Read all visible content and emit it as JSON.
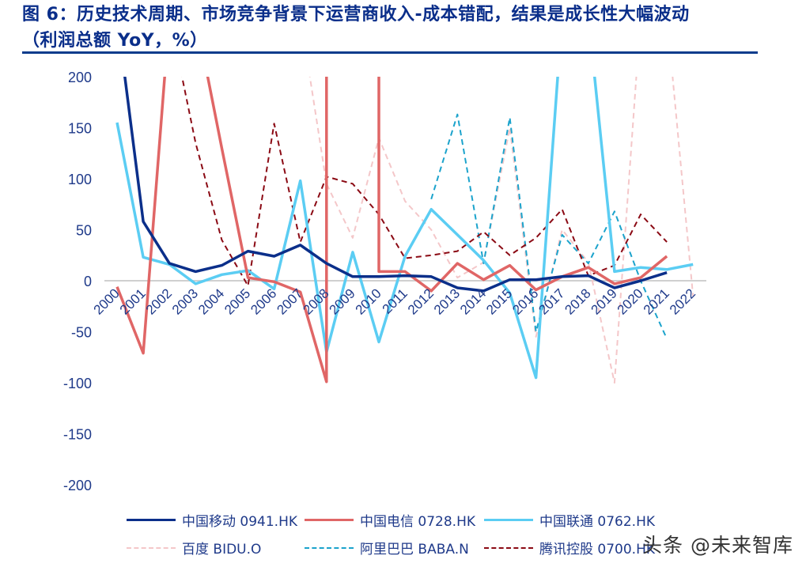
{
  "title": {
    "line1": "图 6：历史技术周期、市场竞争背景下运营商收入-成本错配，结果是成长性大幅波动",
    "line2": "（利润总额 YoY，%）"
  },
  "watermark": "头条 @未来智库",
  "chart_data": {
    "type": "line",
    "title": "图 6：历史技术周期、市场竞争背景下运营商收入-成本错配，结果是成长性大幅波动（利润总额 YoY，%）",
    "xlabel": "",
    "ylabel": "利润总额 YoY，%",
    "ylim": [
      -200,
      200
    ],
    "yticks": [
      200,
      150,
      100,
      50,
      0,
      -50,
      -100,
      -150,
      -200
    ],
    "grid": false,
    "legend_position": "bottom",
    "categories": [
      "2000",
      "2001",
      "2002",
      "2003",
      "2004",
      "2005",
      "2006",
      "2007",
      "2008",
      "2009",
      "2010",
      "2011",
      "2012",
      "2013",
      "2014",
      "2015",
      "2016",
      "2017",
      "2018",
      "2019",
      "2020",
      "2021",
      "2022"
    ],
    "series": [
      {
        "name": "中国移动 0941.HK",
        "color": "#0b2f8a",
        "style": "solid",
        "values": [
          260,
          58,
          17,
          9,
          15,
          29,
          24,
          35,
          17,
          4,
          4,
          5,
          4,
          -7,
          -10,
          1,
          1,
          4,
          5,
          -7,
          0,
          8,
          null
        ]
      },
      {
        "name": "中国电信 0728.HK",
        "color": "#e06666",
        "style": "solid",
        "values": [
          -6,
          -71,
          260,
          260,
          130,
          3,
          -1,
          -11,
          -99,
          260,
          9,
          9,
          -10,
          17,
          1,
          15,
          -9,
          4,
          13,
          -3,
          3,
          24,
          null
        ],
        "note": "2008 drops to -99 then line shoots vertically above 200; 2010 falls vertically from >200 to ~9"
      },
      {
        "name": "中国联通 0762.HK",
        "color": "#5bcdf3",
        "style": "solid",
        "values": [
          155,
          23,
          16,
          -3,
          6,
          10,
          -8,
          98,
          -70,
          28,
          -60,
          24,
          70,
          45,
          20,
          -12,
          -95,
          260,
          260,
          9,
          13,
          11,
          16
        ]
      },
      {
        "name": "百度 BIDU.O",
        "color": "#f4c7c9",
        "style": "dashed",
        "values": [
          null,
          null,
          null,
          null,
          null,
          null,
          null,
          260,
          95,
          42,
          140,
          78,
          50,
          3,
          18,
          150,
          -55,
          50,
          18,
          -100,
          260,
          260,
          -15
        ]
      },
      {
        "name": "阿里巴巴 BABA.N",
        "color": "#1ba3cc",
        "style": "dashed",
        "values": [
          null,
          null,
          null,
          null,
          null,
          null,
          null,
          null,
          null,
          null,
          null,
          null,
          80,
          163,
          17,
          160,
          -50,
          45,
          17,
          68,
          0,
          -57,
          null
        ]
      },
      {
        "name": "腾讯控股 0700.HK",
        "color": "#8b0a14",
        "style": "dashed",
        "values": [
          null,
          null,
          260,
          135,
          40,
          -5,
          154,
          38,
          102,
          95,
          65,
          22,
          25,
          29,
          48,
          25,
          42,
          70,
          5,
          15,
          65,
          38,
          null
        ]
      }
    ]
  },
  "legend": [
    {
      "label": "中国移动 0941.HK",
      "color": "#0b2f8a",
      "style": "solid"
    },
    {
      "label": "中国电信 0728.HK",
      "color": "#e06666",
      "style": "solid"
    },
    {
      "label": "中国联通 0762.HK",
      "color": "#5bcdf3",
      "style": "solid"
    },
    {
      "label": "百度 BIDU.O",
      "color": "#f4c7c9",
      "style": "dashed"
    },
    {
      "label": "阿里巴巴 BABA.N",
      "color": "#1ba3cc",
      "style": "dashed"
    },
    {
      "label": "腾讯控股 0700.HK",
      "color": "#8b0a14",
      "style": "dashed"
    }
  ]
}
